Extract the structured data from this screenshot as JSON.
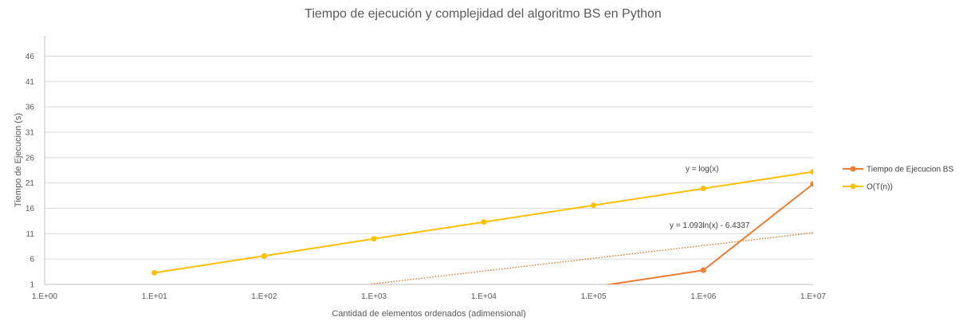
{
  "chart_data": {
    "type": "line",
    "title": "Tiempo de ejecución y complejidad del algoritmo BS en Python",
    "xlabel": "Cantidad de elementos ordenados (adimensional)",
    "ylabel": "Tiempo de Ejecucion (s)",
    "x_scale": "log",
    "xlim": [
      1,
      10000000
    ],
    "ylim": [
      1,
      50
    ],
    "x_ticks": [
      1,
      10,
      100,
      1000,
      10000,
      100000,
      1000000,
      10000000
    ],
    "x_tick_labels": [
      "1.E+00",
      "1.E+01",
      "1.E+02",
      "1.E+03",
      "1.E+04",
      "1.E+05",
      "1.E+06",
      "1.E+07"
    ],
    "y_ticks": [
      1,
      6,
      11,
      16,
      21,
      26,
      31,
      36,
      41,
      46
    ],
    "y_tick_labels": [
      "1",
      "6",
      "11",
      "16",
      "21",
      "26",
      "31",
      "36",
      "41",
      "46"
    ],
    "grid": true,
    "legend_position": "right",
    "series": [
      {
        "name": "Tiempo de Ejecucion BS",
        "color": "#ED7D31",
        "x": [
          10,
          100,
          1000,
          10000,
          100000,
          1000000,
          10000000
        ],
        "y": [
          1e-05,
          0.0005,
          0.003,
          0.02,
          0.5,
          3.8,
          20.8
        ]
      },
      {
        "name": "O(T(n))",
        "color": "#FFC000",
        "x": [
          10,
          100,
          1000,
          10000,
          100000,
          1000000,
          10000000
        ],
        "y": [
          3.3,
          6.6,
          10.0,
          13.3,
          16.6,
          19.9,
          23.2
        ]
      }
    ],
    "trendline": {
      "color": "#ED7D31",
      "a": 1.093,
      "b": -6.4337,
      "style": "dotted"
    },
    "annotations": [
      {
        "text": "y = log(x)"
      },
      {
        "text": "y = 1.093ln(x) - 6.4337"
      }
    ]
  }
}
